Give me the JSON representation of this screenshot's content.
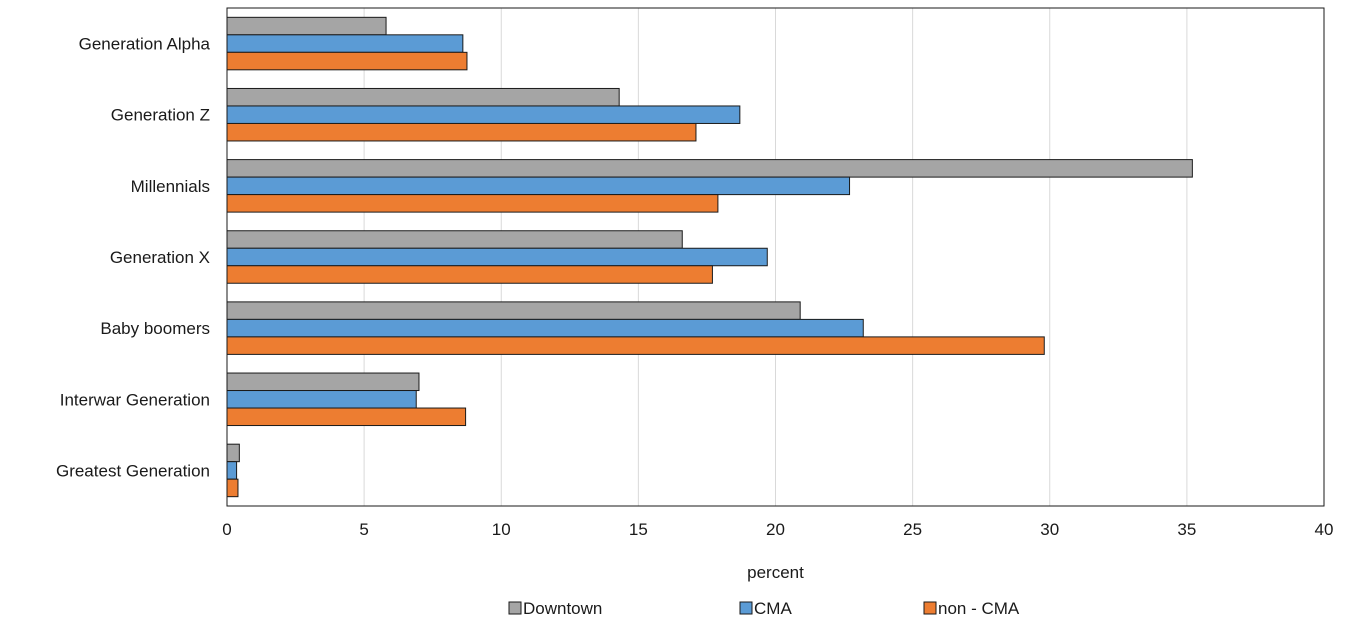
{
  "chart_data": {
    "type": "bar",
    "orientation": "horizontal",
    "categories": [
      "Generation Alpha",
      "Generation Z",
      "Millennials",
      "Generation X",
      "Baby boomers",
      "Interwar Generation",
      "Greatest Generation"
    ],
    "series": [
      {
        "name": "Downtown",
        "color": "#a5a5a5",
        "values": [
          5.8,
          14.3,
          35.2,
          16.6,
          20.9,
          7.0,
          0.45
        ]
      },
      {
        "name": "CMA",
        "color": "#5b9bd5",
        "values": [
          8.6,
          18.7,
          22.7,
          19.7,
          23.2,
          6.9,
          0.35
        ]
      },
      {
        "name": "non - CMA",
        "color": "#ed7d31",
        "values": [
          8.75,
          17.1,
          17.9,
          17.7,
          29.8,
          8.7,
          0.4
        ]
      }
    ],
    "xlabel": "percent",
    "xlim": [
      0,
      40
    ],
    "xticks": [
      0,
      5,
      10,
      15,
      20,
      25,
      30,
      35,
      40
    ],
    "grid": "vertical",
    "legend_position": "bottom"
  }
}
